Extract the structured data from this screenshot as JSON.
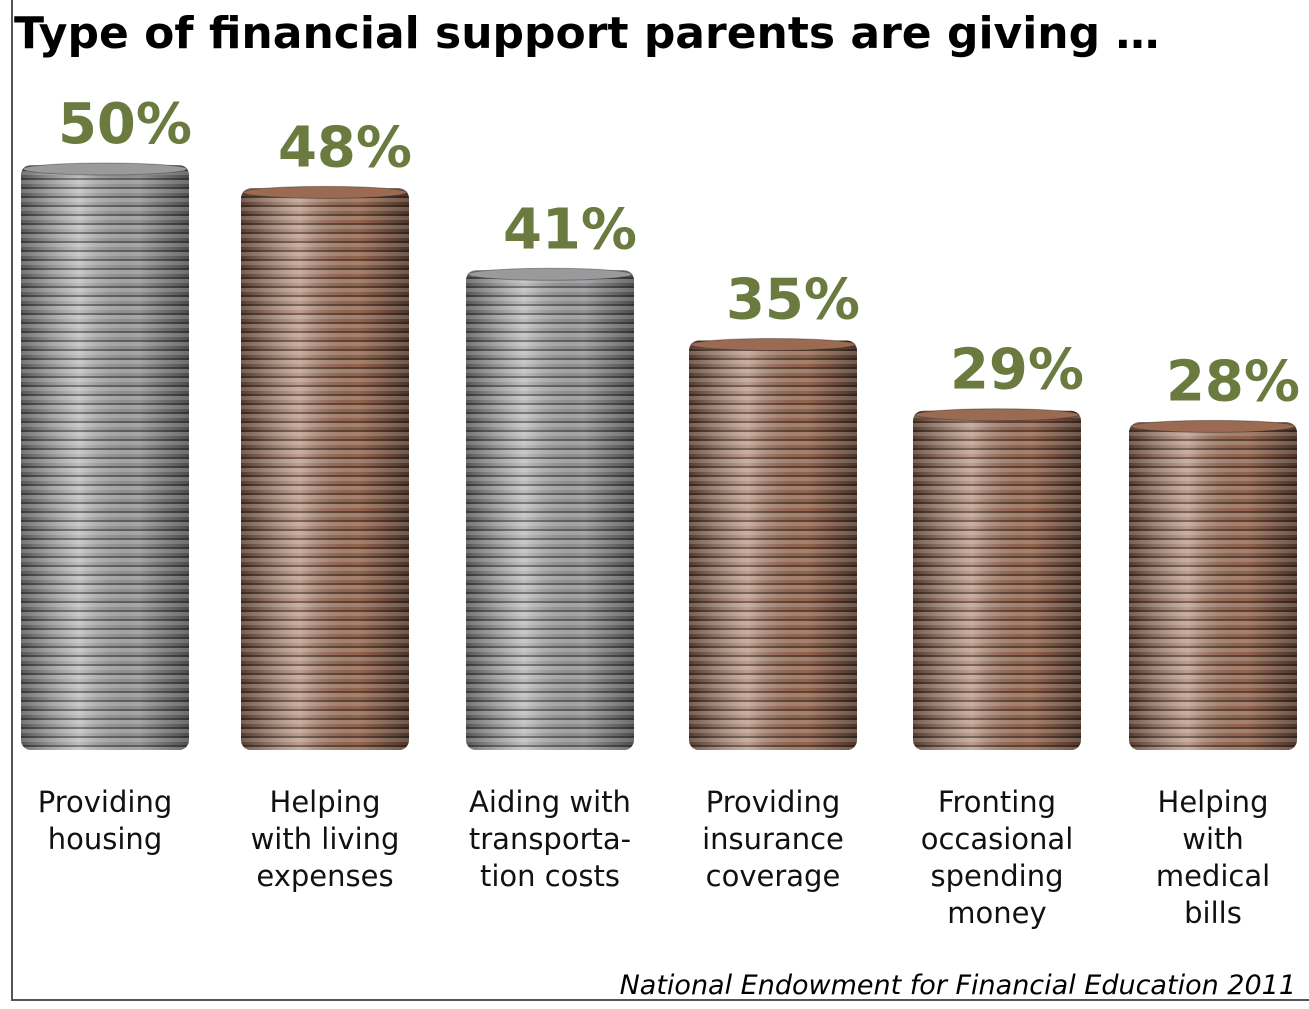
{
  "chart_data": {
    "type": "bar",
    "title": "Type of financial support parents are giving …",
    "categories": [
      "Providing\nhousing",
      "Helping\nwith living\nexpenses",
      "Aiding with\ntransporta-\ntion costs",
      "Providing\ninsurance\ncoverage",
      "Fronting\noccasional\nspending\nmoney",
      "Helping\nwith\nmedical\nbills"
    ],
    "values": [
      50,
      48,
      41,
      35,
      29,
      28
    ],
    "value_labels": [
      "50%",
      "48%",
      "41%",
      "35%",
      "29%",
      "28%"
    ],
    "colors": [
      "#9a9a9c",
      "#9a6a52",
      "#9a9a9c",
      "#9a6a52",
      "#9a6a52",
      "#9a6a52"
    ],
    "label_color": "#6b7a3e",
    "source": "National Endowment for Financial Education 2011"
  }
}
